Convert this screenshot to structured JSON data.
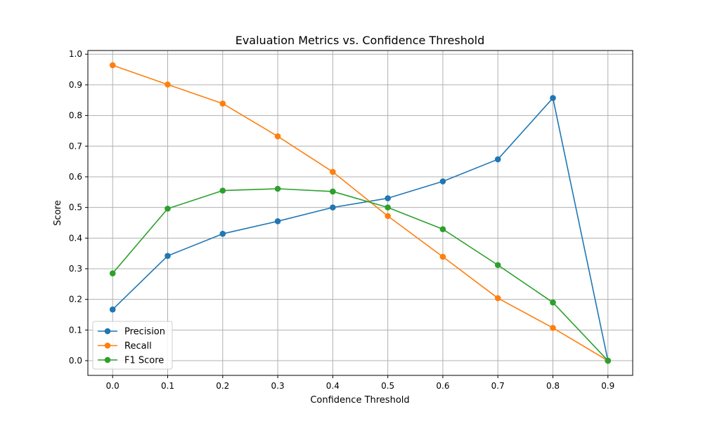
{
  "chart_data": {
    "type": "line",
    "title": "Evaluation Metrics vs. Confidence Threshold",
    "xlabel": "Confidence Threshold",
    "ylabel": "Score",
    "x": [
      0.0,
      0.1,
      0.2,
      0.3,
      0.4,
      0.5,
      0.6,
      0.7,
      0.8,
      0.9
    ],
    "xticks": [
      "0.0",
      "0.1",
      "0.2",
      "0.3",
      "0.4",
      "0.5",
      "0.6",
      "0.7",
      "0.8",
      "0.9"
    ],
    "yticks": [
      "0.0",
      "0.1",
      "0.2",
      "0.3",
      "0.4",
      "0.5",
      "0.6",
      "0.7",
      "0.8",
      "0.9",
      "1.0"
    ],
    "xlim": [
      -0.045,
      0.945
    ],
    "ylim": [
      -0.048,
      1.012
    ],
    "grid": true,
    "legend_position": "lower-left",
    "series": [
      {
        "name": "Precision",
        "color": "#1f77b4",
        "values": [
          0.167,
          0.342,
          0.414,
          0.455,
          0.5,
          0.53,
          0.585,
          0.657,
          0.857,
          0.0
        ]
      },
      {
        "name": "Recall",
        "color": "#ff7f0e",
        "values": [
          0.964,
          0.901,
          0.839,
          0.732,
          0.616,
          0.472,
          0.339,
          0.204,
          0.107,
          0.0
        ]
      },
      {
        "name": "F1 Score",
        "color": "#2ca02c",
        "values": [
          0.285,
          0.496,
          0.555,
          0.561,
          0.552,
          0.5,
          0.429,
          0.312,
          0.19,
          0.0
        ]
      }
    ]
  }
}
